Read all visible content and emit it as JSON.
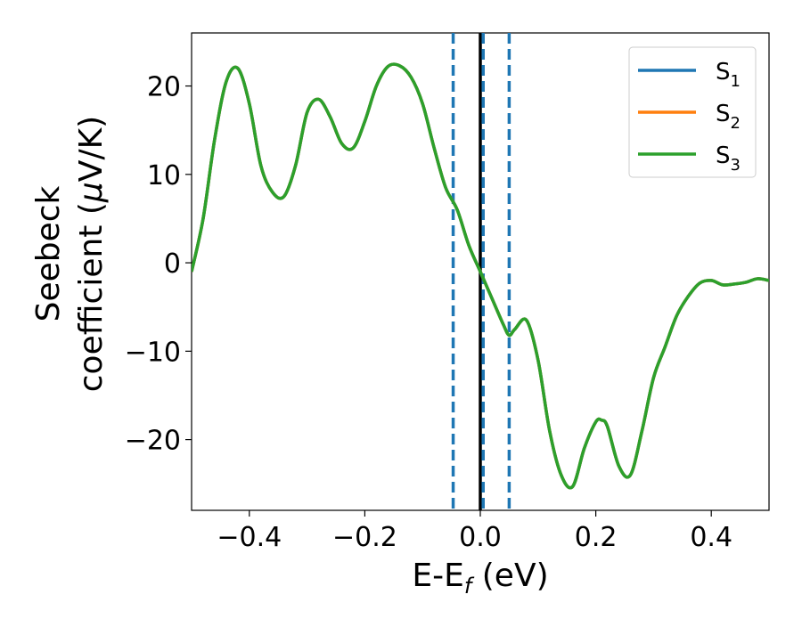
{
  "chart_data": {
    "type": "line",
    "xlabel": {
      "main": "E-E",
      "sub": "f",
      "suffix": " (eV)"
    },
    "ylabel": {
      "line1": "Seebeck",
      "line2_prefix": "coefficient  (",
      "line2_mu": "μ",
      "line2_suffix": "V/K)"
    },
    "xlim": [
      -0.5,
      0.5
    ],
    "ylim": [
      -28,
      26
    ],
    "xticks": [
      -0.4,
      -0.2,
      0.0,
      0.2,
      0.4
    ],
    "xtick_labels": [
      "−0.4",
      "−0.2",
      "0.0",
      "0.2",
      "0.4"
    ],
    "yticks": [
      20,
      10,
      0,
      -10,
      -20
    ],
    "ytick_labels": [
      "20",
      "10",
      "0",
      "−10",
      "−20"
    ],
    "grid": false,
    "legend_position": "top-right",
    "series": [
      {
        "name": "S",
        "sub": "1",
        "color": "#1f77b4"
      },
      {
        "name": "S",
        "sub": "2",
        "color": "#ff7f0e"
      },
      {
        "name": "S",
        "sub": "3",
        "color": "#2ca02c"
      }
    ],
    "x": [
      -0.5,
      -0.48,
      -0.46,
      -0.44,
      -0.42,
      -0.4,
      -0.38,
      -0.36,
      -0.34,
      -0.32,
      -0.3,
      -0.28,
      -0.26,
      -0.24,
      -0.22,
      -0.2,
      -0.18,
      -0.16,
      -0.14,
      -0.12,
      -0.1,
      -0.08,
      -0.06,
      -0.04,
      -0.02,
      0.0,
      0.02,
      0.04,
      0.05,
      0.06,
      0.08,
      0.1,
      0.12,
      0.14,
      0.16,
      0.18,
      0.2,
      0.21,
      0.22,
      0.24,
      0.26,
      0.28,
      0.3,
      0.32,
      0.34,
      0.36,
      0.38,
      0.4,
      0.42,
      0.44,
      0.46,
      0.48,
      0.5
    ],
    "y": [
      -1,
      5,
      14,
      20.5,
      22,
      18,
      11,
      8,
      7.5,
      11,
      17,
      18.5,
      16.5,
      13.5,
      13,
      16,
      20,
      22.2,
      22.3,
      21,
      18,
      13,
      8.5,
      6,
      2,
      -1,
      -4,
      -7,
      -8.2,
      -7.5,
      -6.5,
      -11,
      -19,
      -24,
      -25.3,
      -21,
      -18,
      -17.8,
      -18.5,
      -23,
      -24,
      -19,
      -13,
      -9.5,
      -6,
      -3.8,
      -2.3,
      -2,
      -2.5,
      -2.4,
      -2.2,
      -1.8,
      -2
    ],
    "vlines": [
      {
        "x": -0.047,
        "style": "dashed",
        "color": "#1f77b4"
      },
      {
        "x": 0.0,
        "style": "solid",
        "color": "#000000"
      },
      {
        "x": 0.005,
        "style": "dashed",
        "color": "#1f77b4"
      },
      {
        "x": 0.05,
        "style": "dashed",
        "color": "#1f77b4"
      }
    ]
  }
}
